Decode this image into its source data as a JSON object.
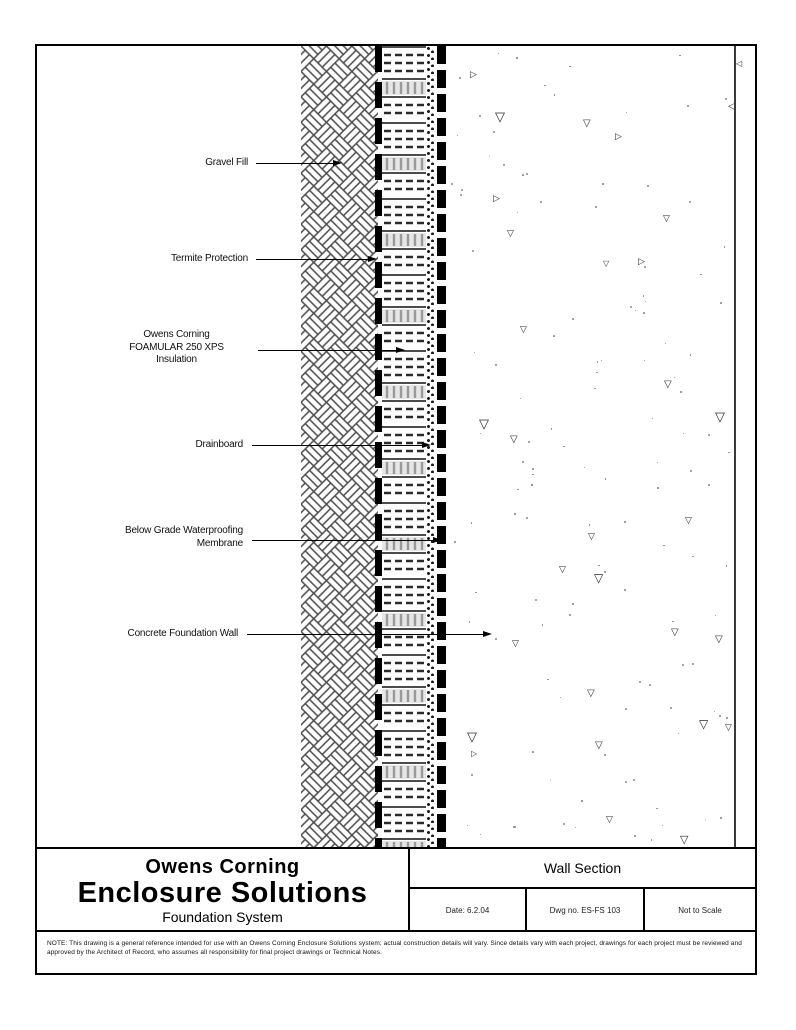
{
  "annotations": {
    "gravel_fill": "Gravel Fill",
    "termite_protection": "Termite Protection",
    "insulation": "Owens Corning\nFOAMULAR 250 XPS\nInsulation",
    "drainboard": "Drainboard",
    "waterproofing": "Below Grade Waterproofing\nMembrane",
    "concrete_wall": "Concrete Foundation Wall"
  },
  "title_block": {
    "company_line1": "Owens Corning",
    "company_line2": "Enclosure Solutions",
    "system": "Foundation System",
    "drawing_title": "Wall Section",
    "date": "Date: 6.2.04",
    "drawing_number": "Dwg no. ES-FS 103",
    "scale": "Not to Scale"
  },
  "note": {
    "text": "NOTE: This drawing is a general reference intended for use with an Owens Corning Enclosure Solutions system; actual construction details will vary. Since details vary with each project, drawings for each project must be reviewed and approved by the Architect of Record, who assumes all responsibility for final project drawings or Technical Notes."
  },
  "colors": {
    "line": "#000000",
    "hatch": "#4a4a4a",
    "paper": "#ffffff"
  }
}
